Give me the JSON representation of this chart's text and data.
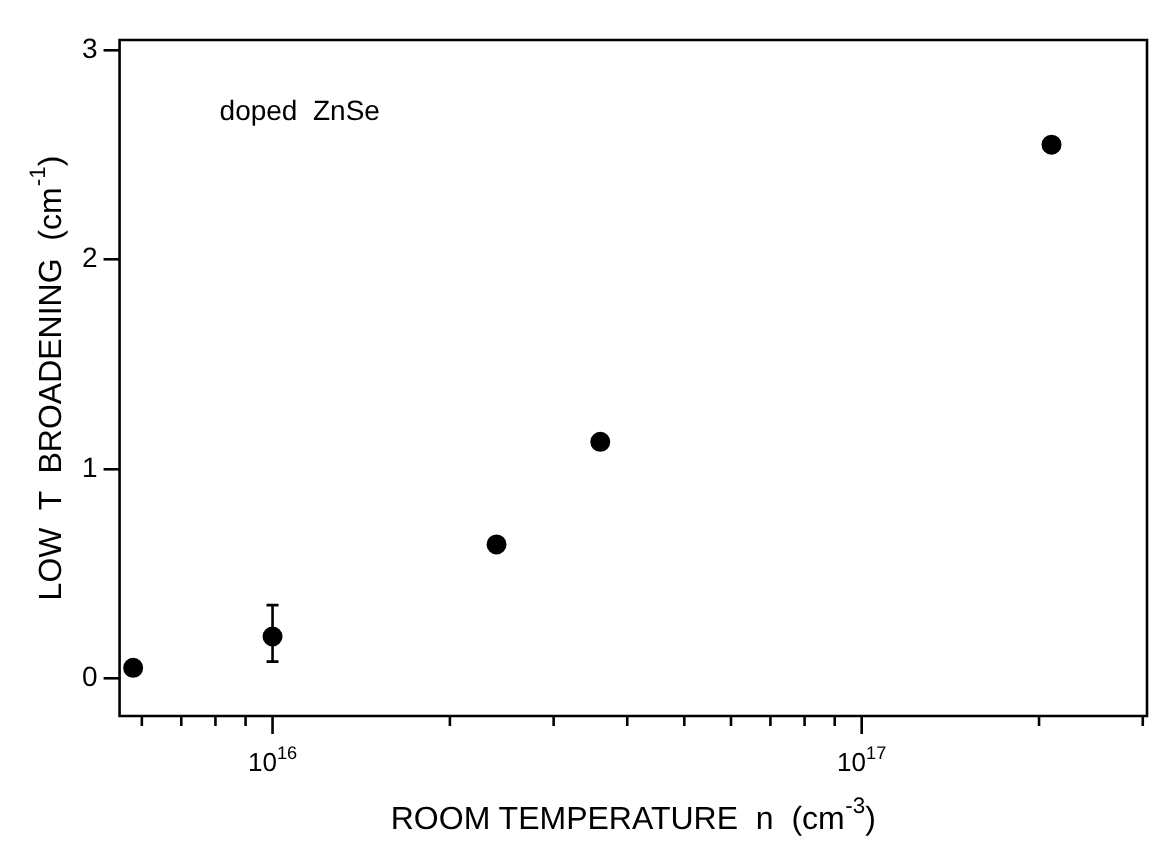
{
  "chart_data": {
    "type": "scatter",
    "xlabel": "ROOM TEMPERATURE  n  (cm$^{-3}$)",
    "ylabel": "LOW  T  BROADENING  (cm$^{-1}$)",
    "annotations": [
      "doped  ZnSe"
    ],
    "x": [
      5800000000000000.0,
      1e+16,
      2.4e+16,
      3.6e+16,
      2.1e+17
    ],
    "values": [
      0.05,
      0.2,
      0.64,
      1.13,
      2.55
    ],
    "errors": [
      null,
      [
        0.08,
        0.35
      ],
      null,
      null,
      null
    ],
    "color": "#000000",
    "marker": "circle",
    "log": "x",
    "grid": false,
    "legend": false,
    "xlim": [
      5500000000000000.0,
      3.05e+17
    ],
    "xticks": [
      {
        "value": 6000000000000000.0,
        "label": null
      },
      {
        "value": 7000000000000000.0,
        "label": null
      },
      {
        "value": 8000000000000000.0,
        "label": null
      },
      {
        "value": 9000000000000000.0,
        "label": null
      },
      {
        "value": 1e+16,
        "label": "10$^{16}$"
      },
      {
        "value": 2e+16,
        "label": null
      },
      {
        "value": 3e+16,
        "label": null
      },
      {
        "value": 4e+16,
        "label": null
      },
      {
        "value": 5e+16,
        "label": null
      },
      {
        "value": 6e+16,
        "label": null
      },
      {
        "value": 7e+16,
        "label": null
      },
      {
        "value": 8e+16,
        "label": null
      },
      {
        "value": 9e+16,
        "label": null
      },
      {
        "value": 1e+17,
        "label": "10$^{17}$"
      },
      {
        "value": 2e+17,
        "label": null
      },
      {
        "value": 3e+17,
        "label": null
      }
    ],
    "ylim": [
      -0.18,
      3.05
    ],
    "yticks": [
      0,
      1,
      2,
      3
    ]
  }
}
